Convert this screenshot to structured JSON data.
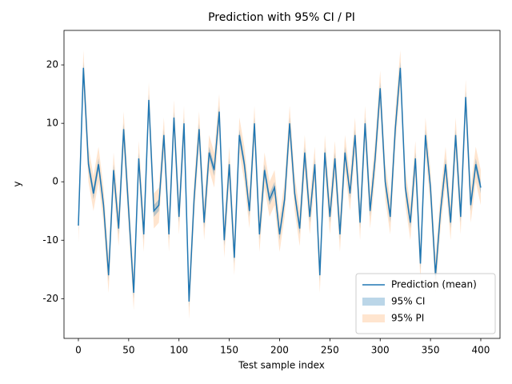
{
  "chart_data": {
    "type": "line",
    "title": "Prediction with 95% CI / PI",
    "xlabel": "Test sample index",
    "ylabel": "y",
    "x": [
      0,
      5,
      10,
      15,
      20,
      25,
      30,
      35,
      40,
      45,
      50,
      55,
      60,
      65,
      70,
      75,
      80,
      85,
      90,
      95,
      100,
      105,
      110,
      115,
      120,
      125,
      130,
      135,
      140,
      145,
      150,
      155,
      160,
      165,
      170,
      175,
      180,
      185,
      190,
      195,
      200,
      205,
      210,
      215,
      220,
      225,
      230,
      235,
      240,
      245,
      250,
      255,
      260,
      265,
      270,
      275,
      280,
      285,
      290,
      295,
      300,
      305,
      310,
      315,
      320,
      325,
      330,
      335,
      340,
      345,
      350,
      355,
      360,
      365,
      370,
      375,
      380,
      385,
      390,
      395,
      400
    ],
    "series": [
      {
        "name": "Prediction (mean)",
        "color": "#1f77b4",
        "values": [
          -7.5,
          19.5,
          3,
          -2,
          3,
          -4,
          -16,
          2,
          -8,
          9,
          -5,
          -19,
          4,
          -9,
          14,
          -5,
          -4,
          8,
          -9,
          11,
          -6,
          10,
          -20.5,
          -3,
          9,
          -7,
          5,
          2,
          12,
          -10,
          3,
          -13,
          8,
          3,
          -5,
          10,
          -9,
          2,
          -3,
          -1,
          -9,
          -3,
          10,
          -2,
          -8,
          5,
          -6,
          3,
          -16,
          5,
          -6,
          4,
          -9,
          5,
          -2,
          8,
          -7,
          10,
          -5,
          4,
          16,
          0,
          -6,
          9,
          19.5,
          -1,
          -7,
          4,
          -14,
          8,
          -1,
          -16,
          -5,
          3,
          -7,
          8,
          -6,
          14.5,
          -4,
          3,
          -1
        ]
      }
    ],
    "bands": [
      {
        "name": "95% CI",
        "color": "#1f77b4",
        "opacity": 0.3,
        "lower": [
          -8.5,
          18.5,
          2,
          -3,
          2,
          -5,
          -17,
          1,
          -9,
          8,
          -6,
          -20,
          3,
          -10,
          13,
          -6,
          -5,
          7,
          -10,
          10,
          -7,
          9,
          -21.5,
          -4,
          8,
          -8,
          4,
          1,
          11,
          -11,
          2,
          -14,
          7,
          2,
          -6,
          9,
          -10,
          1,
          -4,
          -2,
          -10,
          -4,
          9,
          -3,
          -9,
          4,
          -7,
          2,
          -17,
          4,
          -7,
          3,
          -10,
          4,
          -3,
          7,
          -8,
          9,
          -6,
          3,
          15,
          -1,
          -7,
          8,
          18.5,
          -2,
          -8,
          3,
          -15,
          7,
          -2,
          -17,
          -6,
          2,
          -8,
          7,
          -7,
          13.5,
          -5,
          2,
          -2
        ],
        "upper": [
          -6.5,
          20.5,
          4,
          -1,
          4,
          -3,
          -15,
          3,
          -7,
          10,
          -4,
          -18,
          5,
          -8,
          15,
          -4,
          -3,
          9,
          -8,
          12,
          -5,
          11,
          -19.5,
          -2,
          10,
          -6,
          6,
          3,
          13,
          -9,
          4,
          -12,
          9,
          4,
          -4,
          11,
          -8,
          3,
          -2,
          0,
          -8,
          -2,
          11,
          -1,
          -7,
          6,
          -5,
          4,
          -15,
          6,
          -5,
          5,
          -8,
          6,
          -1,
          9,
          -6,
          11,
          -4,
          5,
          17,
          1,
          -5,
          10,
          20.5,
          0,
          -6,
          5,
          -13,
          9,
          0,
          -15,
          -4,
          4,
          -6,
          9,
          -5,
          15.5,
          -3,
          4,
          0
        ]
      },
      {
        "name": "95% PI",
        "color": "#ff7f0e",
        "opacity": 0.2,
        "lower": [
          -10.5,
          16.5,
          0,
          -5,
          0,
          -7,
          -19,
          -1,
          -11,
          6,
          -8,
          -22,
          1,
          -12,
          11,
          -8,
          -7,
          5,
          -12,
          8,
          -9,
          7,
          -23.5,
          -6,
          6,
          -10,
          2,
          -1,
          9,
          -13,
          0,
          -16,
          5,
          0,
          -8,
          7,
          -12,
          -1,
          -6,
          -4,
          -12,
          -6,
          7,
          -5,
          -11,
          2,
          -9,
          0,
          -19,
          2,
          -9,
          1,
          -12,
          2,
          -5,
          5,
          -10,
          7,
          -8,
          1,
          13,
          -3,
          -9,
          6,
          16.5,
          -4,
          -10,
          1,
          -17,
          5,
          -4,
          -19,
          -8,
          0,
          -10,
          5,
          -9,
          11.5,
          -7,
          0,
          -4
        ],
        "upper": [
          -4.5,
          22.5,
          6,
          1,
          6,
          -1,
          -13,
          5,
          -5,
          12,
          -2,
          -16,
          7,
          -6,
          17,
          -2,
          -1,
          11,
          -6,
          14,
          -3,
          13,
          -17.5,
          0,
          12,
          -4,
          8,
          5,
          15,
          -7,
          6,
          -10,
          11,
          6,
          -2,
          13,
          -6,
          5,
          0,
          2,
          -6,
          0,
          13,
          1,
          -5,
          8,
          -3,
          6,
          -13,
          8,
          -3,
          7,
          -6,
          8,
          1,
          11,
          -4,
          13,
          -2,
          7,
          19,
          3,
          -3,
          12,
          22.5,
          2,
          -4,
          7,
          -11,
          11,
          2,
          -13,
          -2,
          6,
          -4,
          11,
          -3,
          17.5,
          -1,
          6,
          2
        ]
      }
    ],
    "xlim": [
      -14.3,
      419.1
    ],
    "ylim": [
      -26.8,
      25.9
    ],
    "xticks": [
      0,
      50,
      100,
      150,
      200,
      250,
      300,
      350,
      400
    ],
    "yticks": [
      -20,
      -10,
      0,
      10,
      20
    ],
    "legend": "lower right",
    "grid": false
  }
}
